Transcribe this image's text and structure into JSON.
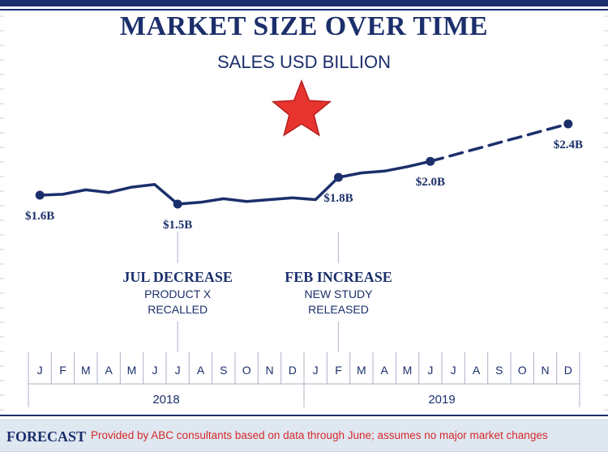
{
  "chart_data": {
    "type": "line",
    "title": "MARKET SIZE OVER TIME",
    "subtitle": "SALES USD BILLION",
    "years": [
      "2018",
      "2019"
    ],
    "months": [
      "J",
      "F",
      "M",
      "A",
      "M",
      "J",
      "J",
      "A",
      "S",
      "O",
      "N",
      "D",
      "J",
      "F",
      "M",
      "A",
      "M",
      "J",
      "J",
      "A",
      "S",
      "O",
      "N",
      "D"
    ],
    "series": [
      {
        "style": "solid",
        "x": [
          "2018-01",
          "2018-02",
          "2018-03",
          "2018-04",
          "2018-05",
          "2018-06",
          "2018-07",
          "2018-08",
          "2018-09",
          "2018-10",
          "2018-11",
          "2018-12",
          "2019-01",
          "2019-02",
          "2019-03",
          "2019-04",
          "2019-05",
          "2019-06"
        ],
        "values": [
          1.6,
          1.61,
          1.66,
          1.63,
          1.69,
          1.72,
          1.5,
          1.52,
          1.56,
          1.53,
          1.55,
          1.57,
          1.55,
          1.8,
          1.85,
          1.87,
          1.92,
          1.98
        ]
      },
      {
        "style": "dashed",
        "x": [
          "2019-06",
          "2019-12"
        ],
        "values": [
          1.98,
          2.4
        ]
      }
    ],
    "point_labels": [
      {
        "x": "2018-01",
        "value": 1.6,
        "text": "$1.6B"
      },
      {
        "x": "2018-07",
        "value": 1.5,
        "text": "$1.5B"
      },
      {
        "x": "2019-02",
        "value": 1.8,
        "text": "$1.8B"
      },
      {
        "x": "2019-06",
        "value": 1.98,
        "text": "$2.0B"
      },
      {
        "x": "2019-12",
        "value": 2.4,
        "text": "$2.4B"
      }
    ],
    "annotations": [
      {
        "x": "2018-07",
        "title": "JUL DECREASE",
        "lines": [
          "PRODUCT X",
          "RECALLED"
        ]
      },
      {
        "x": "2019-02",
        "title": "FEB INCREASE",
        "lines": [
          "NEW STUDY",
          "RELEASED"
        ]
      }
    ]
  },
  "footer": {
    "label": "FORECAST",
    "text": "Provided by ABC consultants based on data through June; assumes no major market changes"
  },
  "colors": {
    "navy": "#1b2f6b",
    "red": "#d42a2a",
    "star": "#e8342f",
    "footer_bg": "#dfe7f1"
  },
  "icons": {
    "star": "star-icon"
  }
}
